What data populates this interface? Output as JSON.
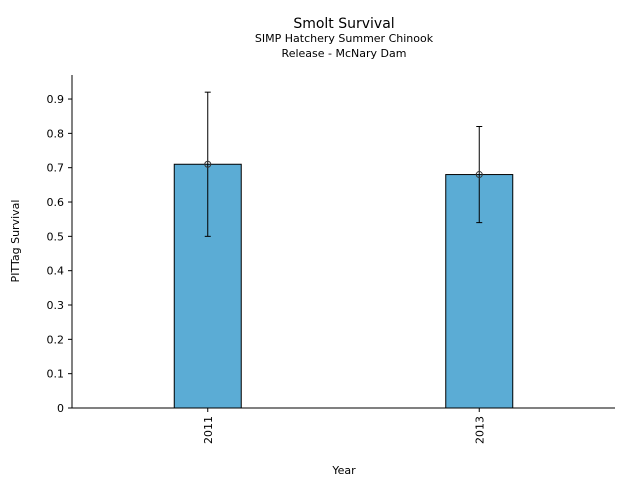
{
  "chart_data": {
    "type": "bar",
    "title": "Smolt Survival",
    "subtitle_lines": [
      "SIMP Hatchery Summer Chinook",
      "Release - McNary Dam"
    ],
    "xlabel": "Year",
    "ylabel": "PITTag Survival",
    "categories": [
      "2011",
      "2013"
    ],
    "values": [
      0.71,
      0.68
    ],
    "error_lower": [
      0.5,
      0.54
    ],
    "error_upper": [
      0.92,
      0.82
    ],
    "ylim": [
      0,
      0.97
    ],
    "yticks": [
      0,
      0.1,
      0.2,
      0.3,
      0.4,
      0.5,
      0.6,
      0.7,
      0.8,
      0.9
    ],
    "ytick_labels": [
      "0",
      "0.1",
      "0.2",
      "0.3",
      "0.4",
      "0.5",
      "0.6",
      "0.7",
      "0.8",
      "0.9"
    ],
    "grid": false,
    "bar_color": "#5bacd5"
  }
}
